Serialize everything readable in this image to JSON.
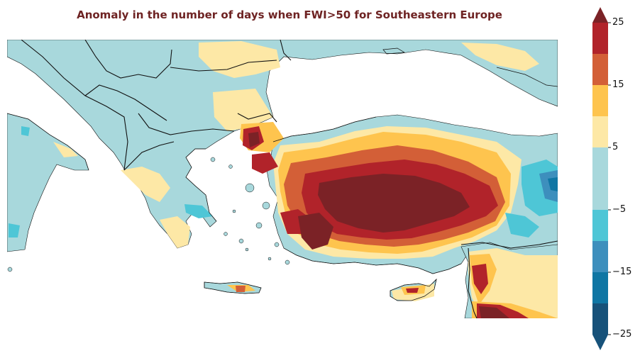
{
  "title": "Anomaly in the number of days when FWI>50 for Southeastern Europe",
  "colorbar": {
    "extend": "both",
    "bins": [
      {
        "from": -25,
        "to": -20,
        "color": "#17527a"
      },
      {
        "from": -20,
        "to": -15,
        "color": "#0f76a4"
      },
      {
        "from": -15,
        "to": -10,
        "color": "#3d8fbd"
      },
      {
        "from": -10,
        "to": -5,
        "color": "#4ec6d6"
      },
      {
        "from": -5,
        "to": 0,
        "color": "#a8d8dc"
      },
      {
        "from": 0,
        "to": 5,
        "color": "#a8d8dc"
      },
      {
        "from": 5,
        "to": 10,
        "color": "#fde8a6"
      },
      {
        "from": 10,
        "to": 15,
        "color": "#fec44e"
      },
      {
        "from": 15,
        "to": 20,
        "color": "#d35f37"
      },
      {
        "from": 20,
        "to": 25,
        "color": "#b1232a"
      }
    ],
    "over_color": "#7b2226",
    "under_color": "#17527a",
    "tick_labels": [
      "25",
      "15",
      "5",
      "−5",
      "−15",
      "−25"
    ],
    "tick_values": [
      25,
      15,
      5,
      -5,
      -15,
      -25
    ]
  },
  "map": {
    "region": "Southeastern Europe",
    "land_base_color": "#a8d8dc",
    "sea_color": "#ffffff",
    "border_color": "#111111"
  }
}
